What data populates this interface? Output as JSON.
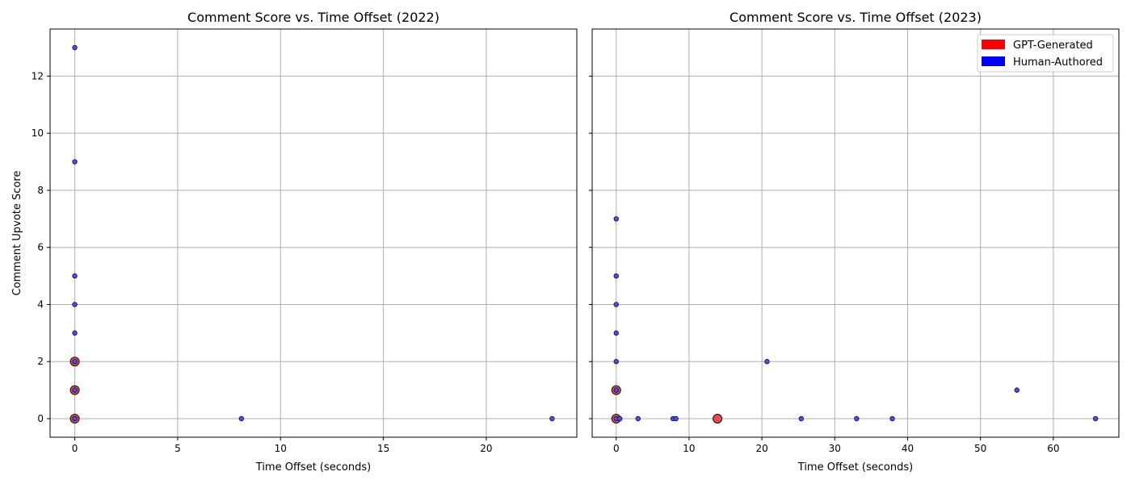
{
  "y_axis_label": "Comment Upvote Score",
  "legend": {
    "items": [
      {
        "label": "GPT-Generated",
        "color": "#ff0000"
      },
      {
        "label": "Human-Authored",
        "color": "#0000ff"
      }
    ]
  },
  "colors": {
    "gpt_marker": "#e05050",
    "human_marker": "#4a4aff",
    "edge": "#111111",
    "grid": "#b0b0b0"
  },
  "chart_data": [
    {
      "type": "scatter",
      "title": "Comment Score vs. Time Offset (2022)",
      "xlabel": "Time Offset (seconds)",
      "ylabel": "Comment Upvote Score",
      "xlim": [
        -1.2,
        24.4
      ],
      "ylim": [
        -0.65,
        13.65
      ],
      "xticks": [
        0,
        5,
        10,
        15,
        20
      ],
      "yticks": [
        0,
        2,
        4,
        6,
        8,
        10,
        12
      ],
      "grid": true,
      "series": [
        {
          "name": "GPT-Generated",
          "size": "large",
          "points": [
            [
              0,
              0
            ],
            [
              0,
              1
            ],
            [
              0,
              2
            ]
          ]
        },
        {
          "name": "Human-Authored",
          "size": "small",
          "points": [
            [
              0,
              13
            ],
            [
              0,
              9
            ],
            [
              0,
              5
            ],
            [
              0,
              4
            ],
            [
              0,
              3
            ],
            [
              0,
              2
            ],
            [
              0,
              1
            ],
            [
              0,
              0
            ],
            [
              8.1,
              0
            ],
            [
              23.2,
              0
            ]
          ]
        }
      ]
    },
    {
      "type": "scatter",
      "title": "Comment Score vs. Time Offset (2023)",
      "xlabel": "Time Offset (seconds)",
      "ylabel": "",
      "xlim": [
        -3.3,
        69.0
      ],
      "ylim": [
        -0.65,
        13.65
      ],
      "xticks": [
        0,
        10,
        20,
        30,
        40,
        50,
        60
      ],
      "yticks": [
        0,
        2,
        4,
        6,
        8,
        10,
        12
      ],
      "grid": true,
      "legend_position": "top-right",
      "series": [
        {
          "name": "GPT-Generated",
          "size": "large",
          "points": [
            [
              0,
              0
            ],
            [
              0,
              1
            ],
            [
              13.9,
              0
            ]
          ]
        },
        {
          "name": "Human-Authored",
          "size": "small",
          "points": [
            [
              0,
              7
            ],
            [
              0,
              5
            ],
            [
              0,
              4
            ],
            [
              0,
              3
            ],
            [
              0,
              2
            ],
            [
              0,
              1
            ],
            [
              0,
              0
            ],
            [
              0.5,
              0
            ],
            [
              3.0,
              0
            ],
            [
              7.8,
              0
            ],
            [
              8.2,
              0
            ],
            [
              20.7,
              2
            ],
            [
              25.4,
              0
            ],
            [
              33.0,
              0
            ],
            [
              37.9,
              0
            ],
            [
              55.0,
              1
            ],
            [
              65.8,
              0
            ]
          ]
        }
      ]
    }
  ]
}
